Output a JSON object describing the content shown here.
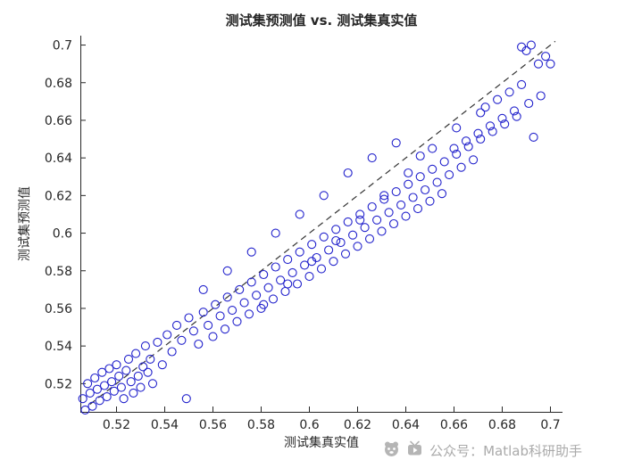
{
  "watermark": {
    "text": "公众号：Matlab科研助手"
  },
  "chart_data": {
    "type": "scatter",
    "title": "测试集预测值 vs. 测试集真实值",
    "xlabel": "测试集真实值",
    "ylabel": "测试集预测值",
    "xlim": [
      0.505,
      0.705
    ],
    "ylim": [
      0.505,
      0.705
    ],
    "xticks": [
      0.52,
      0.54,
      0.56,
      0.58,
      0.6,
      0.62,
      0.64,
      0.66,
      0.68,
      0.7
    ],
    "xtick_labels": [
      "0.52",
      "0.54",
      "0.56",
      "0.58",
      "0.6",
      "0.62",
      "0.64",
      "0.66",
      "0.68",
      "0.7"
    ],
    "yticks": [
      0.52,
      0.54,
      0.56,
      0.58,
      0.6,
      0.62,
      0.64,
      0.66,
      0.68,
      0.7
    ],
    "ytick_labels": [
      "0.52",
      "0.54",
      "0.56",
      "0.58",
      "0.6",
      "0.62",
      "0.64",
      "0.66",
      "0.68",
      "0.7"
    ],
    "grid": false,
    "legend": "none",
    "axis_color": "#262626",
    "marker_color": "#2222cc",
    "reference_line": {
      "style": "dashed",
      "color": "#333333",
      "x1": 0.509,
      "y1": 0.509,
      "x2": 0.702,
      "y2": 0.702
    },
    "points": [
      [
        0.506,
        0.512
      ],
      [
        0.507,
        0.506
      ],
      [
        0.508,
        0.52
      ],
      [
        0.509,
        0.515
      ],
      [
        0.51,
        0.508
      ],
      [
        0.511,
        0.523
      ],
      [
        0.512,
        0.517
      ],
      [
        0.513,
        0.511
      ],
      [
        0.514,
        0.526
      ],
      [
        0.515,
        0.519
      ],
      [
        0.516,
        0.513
      ],
      [
        0.517,
        0.528
      ],
      [
        0.518,
        0.521
      ],
      [
        0.519,
        0.516
      ],
      [
        0.52,
        0.53
      ],
      [
        0.521,
        0.524
      ],
      [
        0.522,
        0.518
      ],
      [
        0.523,
        0.512
      ],
      [
        0.524,
        0.527
      ],
      [
        0.525,
        0.533
      ],
      [
        0.526,
        0.521
      ],
      [
        0.527,
        0.515
      ],
      [
        0.528,
        0.536
      ],
      [
        0.529,
        0.524
      ],
      [
        0.53,
        0.518
      ],
      [
        0.531,
        0.529
      ],
      [
        0.532,
        0.54
      ],
      [
        0.533,
        0.526
      ],
      [
        0.534,
        0.533
      ],
      [
        0.535,
        0.52
      ],
      [
        0.537,
        0.542
      ],
      [
        0.539,
        0.53
      ],
      [
        0.541,
        0.546
      ],
      [
        0.543,
        0.537
      ],
      [
        0.545,
        0.551
      ],
      [
        0.547,
        0.543
      ],
      [
        0.549,
        0.512
      ],
      [
        0.55,
        0.555
      ],
      [
        0.552,
        0.548
      ],
      [
        0.554,
        0.541
      ],
      [
        0.556,
        0.558
      ],
      [
        0.558,
        0.551
      ],
      [
        0.56,
        0.545
      ],
      [
        0.561,
        0.562
      ],
      [
        0.563,
        0.556
      ],
      [
        0.565,
        0.549
      ],
      [
        0.566,
        0.566
      ],
      [
        0.568,
        0.559
      ],
      [
        0.57,
        0.553
      ],
      [
        0.571,
        0.57
      ],
      [
        0.573,
        0.563
      ],
      [
        0.575,
        0.557
      ],
      [
        0.576,
        0.574
      ],
      [
        0.578,
        0.567
      ],
      [
        0.58,
        0.56
      ],
      [
        0.581,
        0.578
      ],
      [
        0.583,
        0.571
      ],
      [
        0.585,
        0.565
      ],
      [
        0.586,
        0.582
      ],
      [
        0.588,
        0.575
      ],
      [
        0.59,
        0.569
      ],
      [
        0.591,
        0.586
      ],
      [
        0.593,
        0.579
      ],
      [
        0.595,
        0.573
      ],
      [
        0.596,
        0.59
      ],
      [
        0.598,
        0.583
      ],
      [
        0.6,
        0.577
      ],
      [
        0.601,
        0.594
      ],
      [
        0.603,
        0.587
      ],
      [
        0.605,
        0.581
      ],
      [
        0.606,
        0.598
      ],
      [
        0.608,
        0.591
      ],
      [
        0.61,
        0.585
      ],
      [
        0.611,
        0.602
      ],
      [
        0.613,
        0.595
      ],
      [
        0.615,
        0.589
      ],
      [
        0.616,
        0.606
      ],
      [
        0.618,
        0.599
      ],
      [
        0.62,
        0.593
      ],
      [
        0.621,
        0.61
      ],
      [
        0.623,
        0.603
      ],
      [
        0.625,
        0.597
      ],
      [
        0.626,
        0.614
      ],
      [
        0.628,
        0.607
      ],
      [
        0.63,
        0.601
      ],
      [
        0.631,
        0.618
      ],
      [
        0.633,
        0.611
      ],
      [
        0.635,
        0.605
      ],
      [
        0.636,
        0.622
      ],
      [
        0.638,
        0.615
      ],
      [
        0.64,
        0.609
      ],
      [
        0.641,
        0.626
      ],
      [
        0.643,
        0.619
      ],
      [
        0.645,
        0.613
      ],
      [
        0.646,
        0.63
      ],
      [
        0.648,
        0.623
      ],
      [
        0.65,
        0.617
      ],
      [
        0.651,
        0.634
      ],
      [
        0.653,
        0.627
      ],
      [
        0.655,
        0.621
      ],
      [
        0.656,
        0.638
      ],
      [
        0.658,
        0.631
      ],
      [
        0.66,
        0.645
      ],
      [
        0.661,
        0.642
      ],
      [
        0.663,
        0.635
      ],
      [
        0.665,
        0.649
      ],
      [
        0.666,
        0.646
      ],
      [
        0.668,
        0.639
      ],
      [
        0.67,
        0.653
      ],
      [
        0.671,
        0.65
      ],
      [
        0.673,
        0.667
      ],
      [
        0.675,
        0.657
      ],
      [
        0.676,
        0.654
      ],
      [
        0.678,
        0.671
      ],
      [
        0.68,
        0.661
      ],
      [
        0.681,
        0.658
      ],
      [
        0.683,
        0.675
      ],
      [
        0.685,
        0.665
      ],
      [
        0.686,
        0.662
      ],
      [
        0.688,
        0.679
      ],
      [
        0.69,
        0.697
      ],
      [
        0.691,
        0.669
      ],
      [
        0.693,
        0.651
      ],
      [
        0.695,
        0.69
      ],
      [
        0.696,
        0.673
      ],
      [
        0.698,
        0.694
      ],
      [
        0.7,
        0.69
      ],
      [
        0.688,
        0.699
      ],
      [
        0.692,
        0.7
      ],
      [
        0.556,
        0.57
      ],
      [
        0.566,
        0.58
      ],
      [
        0.576,
        0.59
      ],
      [
        0.586,
        0.6
      ],
      [
        0.596,
        0.61
      ],
      [
        0.606,
        0.62
      ],
      [
        0.616,
        0.632
      ],
      [
        0.626,
        0.64
      ],
      [
        0.636,
        0.648
      ],
      [
        0.646,
        0.641
      ],
      [
        0.581,
        0.562
      ],
      [
        0.591,
        0.573
      ],
      [
        0.601,
        0.585
      ],
      [
        0.611,
        0.596
      ],
      [
        0.621,
        0.607
      ],
      [
        0.631,
        0.62
      ],
      [
        0.641,
        0.632
      ],
      [
        0.651,
        0.645
      ],
      [
        0.661,
        0.656
      ],
      [
        0.671,
        0.664
      ]
    ]
  }
}
